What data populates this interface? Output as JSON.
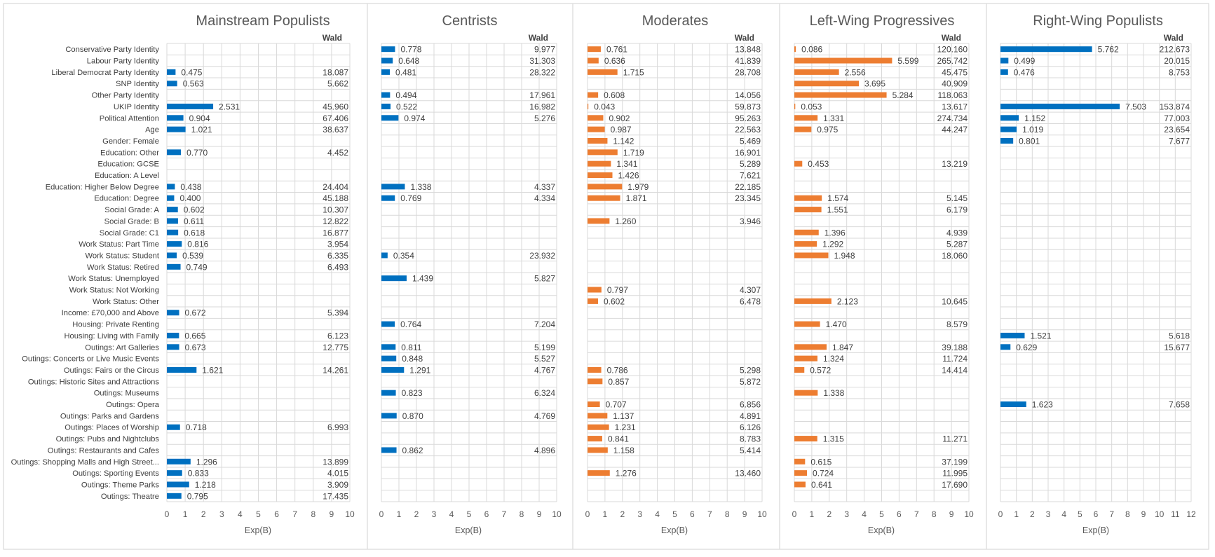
{
  "figure": {
    "wald_header": "Wald",
    "x_axis_title": "Exp(B)",
    "colors": {
      "blue": "#0070C0",
      "orange": "#ED7D31",
      "grid": "#D9D9D9",
      "text": "#595959"
    }
  },
  "chart_data": [
    {
      "type": "bar",
      "orientation": "horizontal",
      "title": "Mainstream Populists",
      "xlabel": "Exp(B)",
      "xlim": [
        0,
        10
      ],
      "xticks": [
        0,
        1,
        2,
        3,
        4,
        5,
        6,
        7,
        8,
        9,
        10
      ],
      "color": "#0070C0",
      "show_categories": true,
      "categories": [
        "Conservative Party Identity",
        "Labour Party Identity",
        "Liberal Democrat Party Identity",
        "SNP Identity",
        "Other Party Identity",
        "UKIP Identity",
        "Political Attention",
        "Age",
        "Gender: Female",
        "Education: Other",
        "Education: GCSE",
        "Education: A Level",
        "Education: Higher Below Degree",
        "Education: Degree",
        "Social Grade: A",
        "Social Grade: B",
        "Social Grade: C1",
        "Work Status: Part Time",
        "Work Status: Student",
        "Work Status: Retired",
        "Work Status: Unemployed",
        "Work Status: Not Working",
        "Work Status: Other",
        "Income: £70,000 and Above",
        "Housing: Private Renting",
        "Housing: Living with Family",
        "Outings: Art Galleries",
        "Outings: Concerts or Live Music Events",
        "Outings: Fairs or the Circus",
        "Outings: Historic Sites and Attractions",
        "Outings: Museums",
        "Outings: Opera",
        "Outings: Parks and Gardens",
        "Outings: Places of Worship",
        "Outings: Pubs and Nightclubs",
        "Outings: Restaurants and Cafes",
        "Outings: Shopping Malls and High Street...",
        "Outings: Sporting Events",
        "Outings: Theme Parks",
        "Outings: Theatre"
      ],
      "values": [
        null,
        null,
        0.475,
        0.563,
        null,
        2.531,
        0.904,
        1.021,
        null,
        0.77,
        null,
        null,
        0.438,
        0.4,
        0.602,
        0.611,
        0.618,
        0.816,
        0.539,
        0.749,
        null,
        null,
        null,
        0.672,
        null,
        0.665,
        0.673,
        null,
        1.621,
        null,
        null,
        null,
        null,
        0.718,
        null,
        null,
        1.296,
        0.833,
        1.218,
        0.795
      ],
      "value_labels": [
        null,
        null,
        "0.475",
        "0.563",
        null,
        "2.531",
        "0.904",
        "1.021",
        null,
        "0.770",
        null,
        null,
        "0.438",
        "0.400",
        "0.602",
        "0.611",
        "0.618",
        "0.816",
        "0.539",
        "0.749",
        null,
        null,
        null,
        "0.672",
        null,
        "0.665",
        "0.673",
        null,
        "1.621",
        null,
        null,
        null,
        null,
        "0.718",
        null,
        null,
        "1.296",
        "0.833",
        "1.218",
        "0.795"
      ],
      "wald": [
        null,
        null,
        "18.087",
        "5.662",
        null,
        "45.960",
        "67.406",
        "38.637",
        null,
        "4.452",
        null,
        null,
        "24.404",
        "45.188",
        "10.307",
        "12.822",
        "16.877",
        "3.954",
        "6.335",
        "6.493",
        null,
        null,
        null,
        "5.394",
        null,
        "6.123",
        "12.775",
        null,
        "14.261",
        null,
        null,
        null,
        null,
        "6.993",
        null,
        null,
        "13.899",
        "4.015",
        "3.909",
        "17.435"
      ]
    },
    {
      "type": "bar",
      "orientation": "horizontal",
      "title": "Centrists",
      "xlabel": "Exp(B)",
      "xlim": [
        0,
        10
      ],
      "xticks": [
        0,
        1,
        2,
        3,
        4,
        5,
        6,
        7,
        8,
        9,
        10
      ],
      "color": "#0070C0",
      "show_categories": false,
      "values": [
        0.778,
        0.648,
        0.481,
        null,
        0.494,
        0.522,
        0.974,
        null,
        null,
        null,
        null,
        null,
        1.338,
        0.769,
        null,
        null,
        null,
        null,
        0.354,
        null,
        1.439,
        null,
        null,
        null,
        0.764,
        null,
        0.811,
        0.848,
        1.291,
        null,
        0.823,
        null,
        0.87,
        null,
        null,
        0.862,
        null,
        null,
        null,
        null
      ],
      "value_labels": [
        "0.778",
        "0.648",
        "0.481",
        null,
        "0.494",
        "0.522",
        "0.974",
        null,
        null,
        null,
        null,
        null,
        "1.338",
        "0.769",
        null,
        null,
        null,
        null,
        "0.354",
        null,
        "1.439",
        null,
        null,
        null,
        "0.764",
        null,
        "0.811",
        "0.848",
        "1.291",
        null,
        "0.823",
        null,
        "0.870",
        null,
        null,
        "0.862",
        null,
        null,
        null,
        null
      ],
      "wald": [
        "9.977",
        "31.303",
        "28.322",
        null,
        "17.961",
        "16.982",
        "5.276",
        null,
        null,
        null,
        null,
        null,
        "4.337",
        "4.334",
        null,
        null,
        null,
        null,
        "23.932",
        null,
        "5.827",
        null,
        null,
        null,
        "7.204",
        null,
        "5.199",
        "5.527",
        "4.767",
        null,
        "6.324",
        null,
        "4.769",
        null,
        null,
        "4.896",
        null,
        null,
        null,
        null
      ]
    },
    {
      "type": "bar",
      "orientation": "horizontal",
      "title": "Moderates",
      "xlabel": "Exp(B)",
      "xlim": [
        0,
        10
      ],
      "xticks": [
        0,
        1,
        2,
        3,
        4,
        5,
        6,
        7,
        8,
        9,
        10
      ],
      "color": "#ED7D31",
      "show_categories": false,
      "values": [
        0.761,
        0.636,
        1.715,
        null,
        0.608,
        0.043,
        0.902,
        0.987,
        1.142,
        1.719,
        1.341,
        1.426,
        1.979,
        1.871,
        null,
        1.26,
        null,
        null,
        null,
        null,
        null,
        0.797,
        0.602,
        null,
        null,
        null,
        null,
        null,
        0.786,
        0.857,
        null,
        0.707,
        1.137,
        1.231,
        0.841,
        1.158,
        null,
        1.276,
        null,
        null
      ],
      "value_labels": [
        "0.761",
        "0.636",
        "1.715",
        null,
        "0.608",
        "0.043",
        "0.902",
        "0.987",
        "1.142",
        "1.719",
        "1.341",
        "1.426",
        "1.979",
        "1.871",
        null,
        "1.260",
        null,
        null,
        null,
        null,
        null,
        "0.797",
        "0.602",
        null,
        null,
        null,
        null,
        null,
        "0.786",
        "0.857",
        null,
        "0.707",
        "1.137",
        "1.231",
        "0.841",
        "1.158",
        null,
        "1.276",
        null,
        null
      ],
      "wald": [
        "13.848",
        "41.839",
        "28.708",
        null,
        "14.056",
        "59.873",
        "95.263",
        "22.563",
        "5.469",
        "16.901",
        "5.289",
        "7.621",
        "22.185",
        "23.345",
        null,
        "3.946",
        null,
        null,
        null,
        null,
        null,
        "4.307",
        "6.478",
        null,
        null,
        null,
        null,
        null,
        "5.298",
        "5.872",
        null,
        "6.856",
        "4.891",
        "6.126",
        "8.783",
        "5.414",
        null,
        "13.460",
        null,
        null
      ]
    },
    {
      "type": "bar",
      "orientation": "horizontal",
      "title": "Left-Wing Progressives",
      "xlabel": "Exp(B)",
      "xlim": [
        0,
        10
      ],
      "xticks": [
        0,
        1,
        2,
        3,
        4,
        5,
        6,
        7,
        8,
        9,
        10
      ],
      "color": "#ED7D31",
      "show_categories": false,
      "values": [
        0.086,
        5.599,
        2.556,
        3.695,
        5.284,
        0.053,
        1.331,
        0.975,
        null,
        null,
        0.453,
        null,
        null,
        1.574,
        1.551,
        null,
        1.396,
        1.292,
        1.948,
        null,
        null,
        null,
        2.123,
        null,
        1.47,
        null,
        1.847,
        1.324,
        0.572,
        null,
        1.338,
        null,
        null,
        null,
        1.315,
        null,
        0.615,
        0.724,
        0.641,
        null
      ],
      "value_labels": [
        "0.086",
        "5.599",
        "2.556",
        "3.695",
        "5.284",
        "0.053",
        "1.331",
        "0.975",
        null,
        null,
        "0.453",
        null,
        null,
        "1.574",
        "1.551",
        null,
        "1.396",
        "1.292",
        "1.948",
        null,
        null,
        null,
        "2.123",
        null,
        "1.470",
        null,
        "1.847",
        "1.324",
        "0.572",
        null,
        "1.338",
        null,
        null,
        null,
        "1.315",
        null,
        "0.615",
        "0.724",
        "0.641",
        null
      ],
      "wald": [
        "120.160",
        "265.742",
        "45.475",
        "40.909",
        "118.063",
        "13.617",
        "274.734",
        "44.247",
        null,
        null,
        "13.219",
        null,
        null,
        "5.145",
        "6.179",
        null,
        "4.939",
        "5.287",
        "18.060",
        null,
        null,
        null,
        "10.645",
        null,
        "8.579",
        null,
        "39.188",
        "11.724",
        "14.414",
        null,
        null,
        null,
        null,
        null,
        "11.271",
        null,
        "37.199",
        "11.995",
        "17.690",
        null
      ]
    },
    {
      "type": "bar",
      "orientation": "horizontal",
      "title": "Right-Wing Populists",
      "xlabel": "Exp(B)",
      "xlim": [
        0,
        12
      ],
      "xticks": [
        0,
        1,
        2,
        3,
        4,
        5,
        6,
        7,
        8,
        9,
        10,
        11,
        12
      ],
      "color": "#0070C0",
      "show_categories": false,
      "values": [
        5.762,
        0.499,
        0.476,
        null,
        null,
        7.503,
        1.152,
        1.019,
        0.801,
        null,
        null,
        null,
        null,
        null,
        null,
        null,
        null,
        null,
        null,
        null,
        null,
        null,
        null,
        null,
        null,
        1.521,
        0.629,
        null,
        null,
        null,
        null,
        1.623,
        null,
        null,
        null,
        null,
        null,
        null,
        null,
        null
      ],
      "value_labels": [
        "5.762",
        "0.499",
        "0.476",
        null,
        null,
        "7.503",
        "1.152",
        "1.019",
        "0.801",
        null,
        null,
        null,
        null,
        null,
        null,
        null,
        null,
        null,
        null,
        null,
        null,
        null,
        null,
        null,
        null,
        "1.521",
        "0.629",
        null,
        null,
        null,
        null,
        "1.623",
        null,
        null,
        null,
        null,
        null,
        null,
        null,
        null
      ],
      "wald": [
        "212.673",
        "20.015",
        "8.753",
        null,
        null,
        "153.874",
        "77.003",
        "23.654",
        "7.677",
        null,
        null,
        null,
        null,
        null,
        null,
        null,
        null,
        null,
        null,
        null,
        null,
        null,
        null,
        null,
        null,
        "5.618",
        "15.677",
        null,
        null,
        null,
        null,
        "7.658",
        null,
        null,
        null,
        null,
        null,
        null,
        null,
        null
      ]
    }
  ]
}
